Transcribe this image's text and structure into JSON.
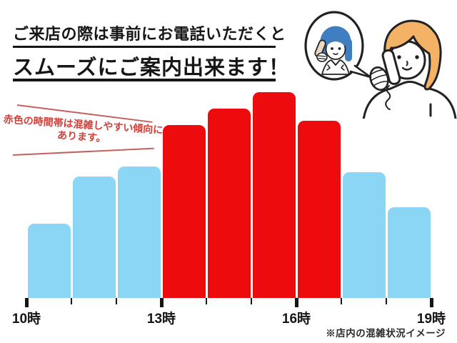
{
  "header": {
    "line1": "ご来店の際は事前にお電話いただくと",
    "line2": "スムーズにご案内出来ます！"
  },
  "annotation": {
    "text_line1": "赤色の時間帯は混雑しやすい傾向に",
    "text_line2": "あります。",
    "text_color": "#d04038",
    "line_color": "#c4625f"
  },
  "illustration": {
    "description": "customer-calling-shop-clerk",
    "clerk_hair_color": "#3f7fc1",
    "customer_hair_color": "#f4b266",
    "clerk_phone_color": "#ead9bc",
    "outline_color": "#222222"
  },
  "chart_data": {
    "type": "bar",
    "categories": [
      "10-11時",
      "11-12時",
      "12-13時",
      "13-14時",
      "14-15時",
      "15-16時",
      "16-17時",
      "17-18時",
      "18-19時"
    ],
    "values": [
      36,
      59,
      64,
      84,
      92,
      100,
      86,
      61,
      44
    ],
    "series_note": "store congestion level, percent of peak (estimated from bar heights)",
    "bar_colors": [
      "#8bd6f4",
      "#8bd6f4",
      "#8bd6f4",
      "#ee0b0e",
      "#ee0b0e",
      "#ee0b0e",
      "#ee0b0e",
      "#8bd6f4",
      "#8bd6f4"
    ],
    "busy_color": "#ee0b0e",
    "calm_color": "#8bd6f4",
    "x_tick_labels": [
      "10時",
      "13時",
      "16時",
      "19時"
    ],
    "title": "",
    "xlabel": "",
    "ylabel": "",
    "ylim": [
      0,
      100
    ],
    "grid": false,
    "legend": null
  },
  "footer": {
    "note": "※店内の混雑状況イメージ"
  }
}
